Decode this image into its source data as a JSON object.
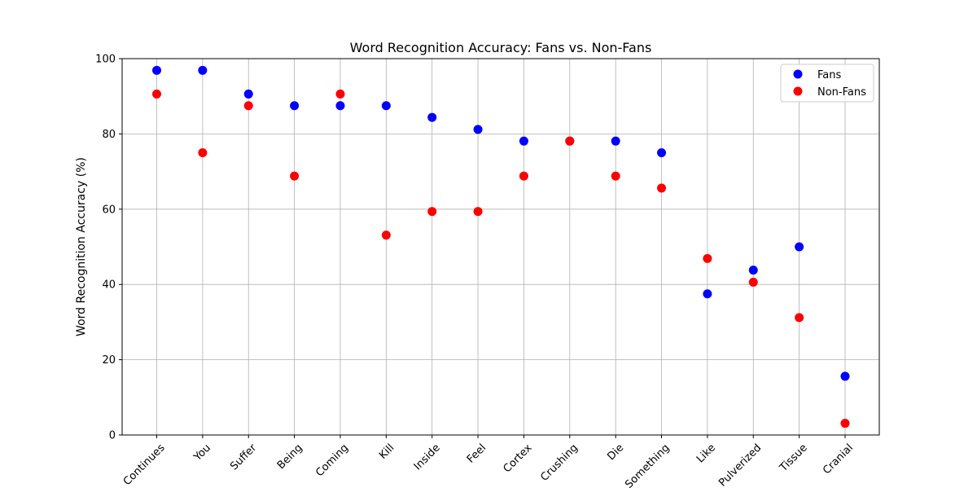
{
  "chart_data": {
    "type": "scatter",
    "title": "Word Recognition Accuracy: Fans vs. Non-Fans",
    "xlabel": "",
    "ylabel": "Word Recognition Accuracy (%)",
    "categories": [
      "Continues",
      "You",
      "Suffer",
      "Being",
      "Coming",
      "Kill",
      "Inside",
      "Feel",
      "Cortex",
      "Crushing",
      "Die",
      "Something",
      "Like",
      "Pulverized",
      "Tissue",
      "Cranial"
    ],
    "ylim": [
      0,
      100
    ],
    "yticks": [
      0,
      20,
      40,
      60,
      80,
      100
    ],
    "grid": true,
    "legend_position": "top-right",
    "series": [
      {
        "name": "Fans",
        "color": "#0000ff",
        "values": [
          96.9,
          96.9,
          90.6,
          87.5,
          87.5,
          87.5,
          84.4,
          81.2,
          78.1,
          78.1,
          78.1,
          75.0,
          37.5,
          43.8,
          50.0,
          15.6
        ]
      },
      {
        "name": "Non-Fans",
        "color": "#ff0000",
        "values": [
          90.6,
          75.0,
          87.5,
          68.8,
          90.6,
          53.1,
          59.4,
          59.4,
          68.8,
          78.1,
          68.8,
          65.6,
          46.9,
          40.6,
          31.2,
          3.1
        ]
      }
    ]
  }
}
